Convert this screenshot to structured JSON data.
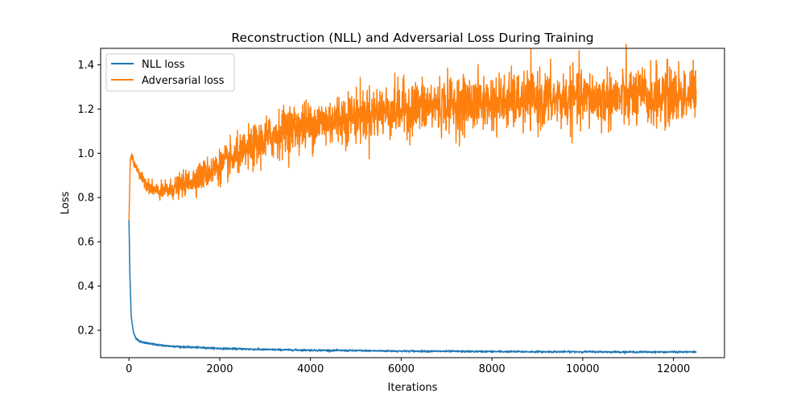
{
  "chart_data": {
    "type": "line",
    "title": "Reconstruction (NLL) and Adversarial Loss During Training",
    "xlabel": "Iterations",
    "ylabel": "Loss",
    "xlim": [
      -625,
      13125
    ],
    "ylim": [
      0.0763,
      1.4743
    ],
    "x_ticks": [
      0,
      2000,
      4000,
      6000,
      8000,
      10000,
      12000
    ],
    "y_ticks": [
      0.2,
      0.4,
      0.6,
      0.8,
      1.0,
      1.2,
      1.4
    ],
    "x_tick_labels": [
      "0",
      "2000",
      "4000",
      "6000",
      "8000",
      "10000",
      "12000"
    ],
    "y_tick_labels": [
      "0.2",
      "0.4",
      "0.6",
      "0.8",
      "1.0",
      "1.2",
      "1.4"
    ],
    "grid": false,
    "legend_position": "top-left",
    "series": [
      {
        "name": "NLL loss",
        "color": "#1f77b4",
        "noise": 0.002,
        "x": [
          0,
          20,
          50,
          100,
          150,
          200,
          300,
          500,
          800,
          1200,
          2000,
          3000,
          4000,
          5000,
          6000,
          7000,
          8000,
          9000,
          10000,
          11000,
          12000,
          12500
        ],
        "values": [
          0.7,
          0.45,
          0.26,
          0.19,
          0.165,
          0.155,
          0.145,
          0.138,
          0.13,
          0.125,
          0.118,
          0.113,
          0.11,
          0.108,
          0.106,
          0.105,
          0.104,
          0.103,
          0.103,
          0.102,
          0.102,
          0.102
        ]
      },
      {
        "name": "Adversarial loss",
        "color": "#ff7f0e",
        "x": [
          0,
          30,
          60,
          100,
          200,
          300,
          400,
          500,
          600,
          700,
          900,
          1200,
          1500,
          2000,
          2500,
          3000,
          3500,
          4000,
          5000,
          6000,
          7000,
          8000,
          9000,
          10000,
          11000,
          12000,
          12500
        ],
        "values": [
          0.7,
          0.97,
          0.99,
          0.96,
          0.92,
          0.88,
          0.86,
          0.84,
          0.83,
          0.825,
          0.835,
          0.86,
          0.89,
          0.94,
          1.0,
          1.06,
          1.11,
          1.13,
          1.17,
          1.2,
          1.22,
          1.23,
          1.24,
          1.245,
          1.25,
          1.26,
          1.27
        ],
        "noise_x": [
          0,
          500,
          1500,
          3000,
          5000,
          12500
        ],
        "noise_values": [
          0.005,
          0.015,
          0.03,
          0.05,
          0.06,
          0.07
        ]
      }
    ]
  }
}
